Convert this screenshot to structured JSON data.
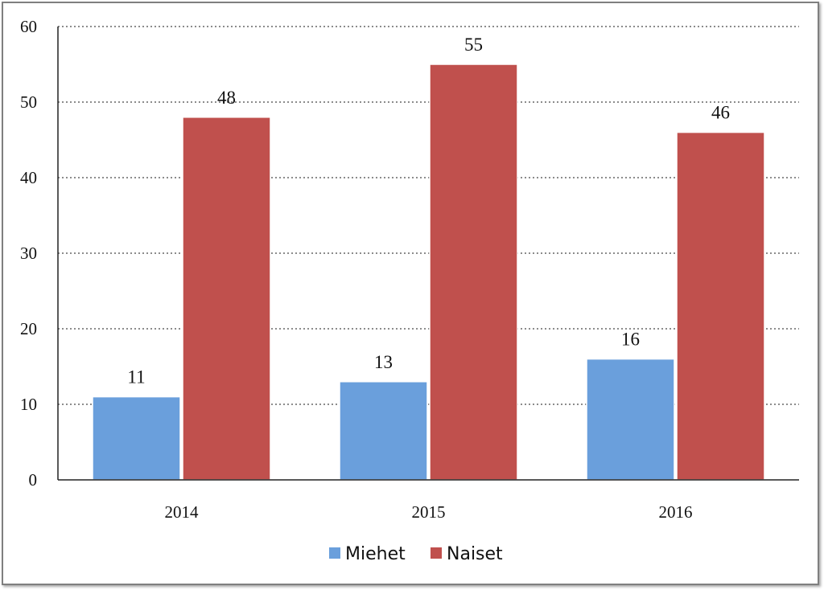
{
  "chart_data": {
    "type": "bar",
    "categories": [
      "2014",
      "2015",
      "2016"
    ],
    "series": [
      {
        "name": "Miehet",
        "values": [
          11,
          13,
          16
        ],
        "color": "#6A9FDC"
      },
      {
        "name": "Naiset",
        "values": [
          48,
          55,
          46
        ],
        "color": "#C0504D"
      }
    ],
    "ylim": [
      0,
      60
    ],
    "yticks": [
      0,
      10,
      20,
      30,
      40,
      50,
      60
    ],
    "grid": true,
    "legend": "bottom"
  }
}
